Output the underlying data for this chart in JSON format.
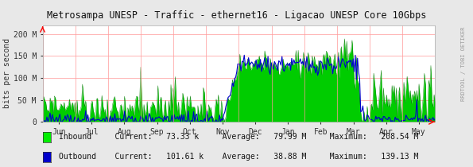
{
  "title": "Metrosampa UNESP - Traffic - ethernet16 - Ligacao UNESP Core 10Gbps",
  "ylabel": "bits per second",
  "bg_color": "#e8e8e8",
  "plot_bg_color": "#ffffff",
  "grid_color": "#ff9999",
  "inbound_color": "#00cc00",
  "inbound_edge_color": "#007700",
  "outbound_color": "#0000cc",
  "legend": [
    {
      "label": "Inbound",
      "current": "73.33 k",
      "average": "79.99 M",
      "maximum": "208.54 M",
      "color": "#00ee00"
    },
    {
      "label": "Outbound",
      "current": "101.61 k",
      "average": "38.88 M",
      "maximum": "139.13 M",
      "color": "#0000cc"
    }
  ],
  "x_tick_labels": [
    "Jun",
    "Jul",
    "Aug",
    "Sep",
    "Oct",
    "Nov",
    "Dec",
    "Jan",
    "Feb",
    "Mar",
    "Apr",
    "May"
  ],
  "ytick_labels": [
    "0",
    "50 M",
    "100 M",
    "150 M",
    "200 M"
  ],
  "ytick_values": [
    0,
    50,
    100,
    150,
    200
  ],
  "ymax": 220,
  "watermark": "RRDTOOL / TOBI OETIKER",
  "title_color": "#333333",
  "axis_color": "#333333",
  "font_mono": true
}
